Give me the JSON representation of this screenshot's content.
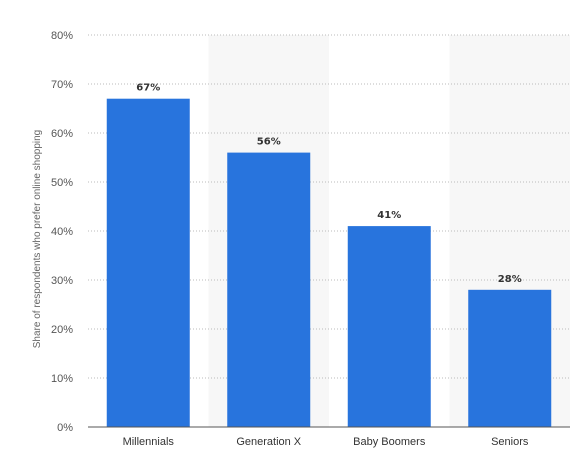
{
  "chart_data": {
    "type": "bar",
    "categories": [
      "Millennials",
      "Generation X",
      "Baby Boomers",
      "Seniors"
    ],
    "values": [
      67,
      56,
      41,
      28
    ],
    "value_labels": [
      "67%",
      "56%",
      "41%",
      "28%"
    ],
    "title": "",
    "xlabel": "",
    "ylabel": "Share of respondents who prefer online shopping",
    "ylim": [
      0,
      80
    ],
    "yticks": [
      "0%",
      "10%",
      "20%",
      "30%",
      "40%",
      "50%",
      "60%",
      "70%",
      "80%"
    ],
    "grid": true,
    "legend": "none",
    "colors": {
      "bar": "#2874dd",
      "band": "#f7f7f7",
      "grid": "#bbbbbb"
    }
  }
}
